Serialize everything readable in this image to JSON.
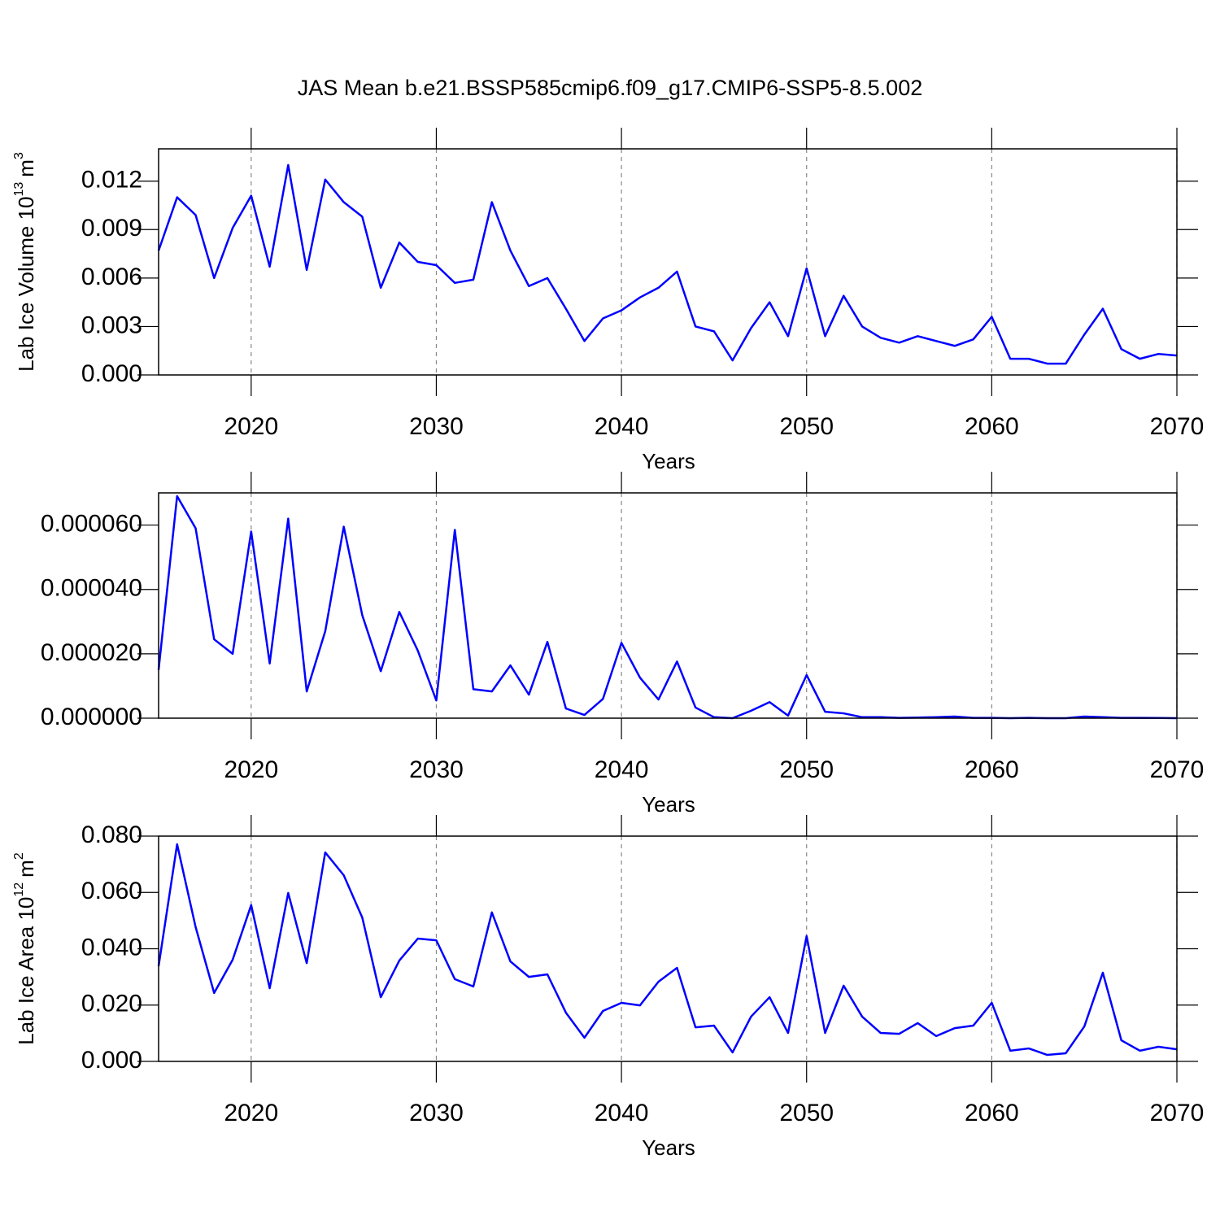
{
  "chart_data": [
    {
      "type": "line",
      "title": "JAS Mean b.e21.BSSP585cmip6.f09_g17.CMIP6-SSP5-8.5.002",
      "xlabel": "Years",
      "ylabel": [
        "Lab Ice Volume 10",
        "13",
        "m",
        "3"
      ],
      "x": [
        2015,
        2016,
        2017,
        2018,
        2019,
        2020,
        2021,
        2022,
        2023,
        2024,
        2025,
        2026,
        2027,
        2028,
        2029,
        2030,
        2031,
        2032,
        2033,
        2034,
        2035,
        2036,
        2037,
        2038,
        2039,
        2040,
        2041,
        2042,
        2043,
        2044,
        2045,
        2046,
        2047,
        2048,
        2049,
        2050,
        2051,
        2052,
        2053,
        2054,
        2055,
        2056,
        2057,
        2058,
        2059,
        2060,
        2061,
        2062,
        2063,
        2064,
        2065,
        2066,
        2067,
        2068,
        2069,
        2070
      ],
      "values": [
        0.0077,
        0.011,
        0.0099,
        0.006,
        0.0091,
        0.0111,
        0.0067,
        0.013,
        0.0065,
        0.0121,
        0.0107,
        0.0098,
        0.0054,
        0.0082,
        0.007,
        0.0068,
        0.0057,
        0.0059,
        0.0107,
        0.0077,
        0.0055,
        0.006,
        0.0041,
        0.0021,
        0.0035,
        0.004,
        0.0048,
        0.0054,
        0.0064,
        0.003,
        0.0027,
        0.0009,
        0.0029,
        0.0045,
        0.0024,
        0.0066,
        0.0024,
        0.0049,
        0.003,
        0.0023,
        0.002,
        0.0024,
        0.0021,
        0.0018,
        0.0022,
        0.0036,
        0.001,
        0.001,
        0.0007,
        0.0007,
        0.0025,
        0.0041,
        0.0016,
        0.001,
        0.0013,
        0.0012
      ],
      "color": "#0000ff",
      "grid": true,
      "xlim": [
        2015,
        2070
      ],
      "xticks": [
        2020,
        2030,
        2040,
        2050,
        2060,
        2070
      ],
      "ylim": [
        0,
        0.014
      ],
      "yticks": [
        {
          "value": 0,
          "label": "0.000"
        },
        {
          "value": 0.003,
          "label": "0.003"
        },
        {
          "value": 0.006,
          "label": "0.006"
        },
        {
          "value": 0.009,
          "label": "0.009"
        },
        {
          "value": 0.012,
          "label": "0.012"
        }
      ]
    },
    {
      "type": "line",
      "xlabel": "Years",
      "x": [
        2015,
        2016,
        2017,
        2018,
        2019,
        2020,
        2021,
        2022,
        2023,
        2024,
        2025,
        2026,
        2027,
        2028,
        2029,
        2030,
        2031,
        2032,
        2033,
        2034,
        2035,
        2036,
        2037,
        2038,
        2039,
        2040,
        2041,
        2042,
        2043,
        2044,
        2045,
        2046,
        2047,
        2048,
        2049,
        2050,
        2051,
        2052,
        2053,
        2054,
        2055,
        2056,
        2057,
        2058,
        2059,
        2060,
        2061,
        2062,
        2063,
        2064,
        2065,
        2066,
        2067,
        2068,
        2069,
        2070
      ],
      "values": [
        1.5e-05,
        6.9e-05,
        5.9e-05,
        2.45e-05,
        2e-05,
        5.8e-05,
        1.7e-05,
        6.2e-05,
        8.3e-06,
        2.7e-05,
        5.95e-05,
        3.2e-05,
        1.46e-05,
        3.3e-05,
        2.1e-05,
        5.5e-06,
        5.85e-05,
        9e-06,
        8.3e-06,
        1.64e-05,
        7.3e-06,
        2.37e-05,
        3e-06,
        1e-06,
        6e-06,
        2.34e-05,
        1.26e-05,
        5.8e-06,
        1.76e-05,
        3.3e-06,
        3e-07,
        0,
        2.3e-06,
        5e-06,
        8e-07,
        1.34e-05,
        2e-06,
        1.5e-06,
        3e-07,
        3e-07,
        1e-07,
        2e-07,
        3e-07,
        5e-07,
        1e-07,
        1e-07,
        0,
        1e-07,
        0,
        0,
        5e-07,
        3e-07,
        1e-07,
        1e-07,
        5e-08,
        0
      ],
      "color": "#0000ff",
      "grid": true,
      "xlim": [
        2015,
        2070
      ],
      "xticks": [
        2020,
        2030,
        2040,
        2050,
        2060,
        2070
      ],
      "ylim": [
        0,
        7e-05
      ],
      "yticks": [
        {
          "value": 0,
          "label": "0.000000"
        },
        {
          "value": 2e-05,
          "label": "0.000020"
        },
        {
          "value": 4e-05,
          "label": "0.000040"
        },
        {
          "value": 6e-05,
          "label": "0.000060"
        }
      ]
    },
    {
      "type": "line",
      "xlabel": "Years",
      "ylabel": [
        "Lab Ice Area 10",
        "12",
        "m",
        "2"
      ],
      "x": [
        2015,
        2016,
        2017,
        2018,
        2019,
        2020,
        2021,
        2022,
        2023,
        2024,
        2025,
        2026,
        2027,
        2028,
        2029,
        2030,
        2031,
        2032,
        2033,
        2034,
        2035,
        2036,
        2037,
        2038,
        2039,
        2040,
        2041,
        2042,
        2043,
        2044,
        2045,
        2046,
        2047,
        2048,
        2049,
        2050,
        2051,
        2052,
        2053,
        2054,
        2055,
        2056,
        2057,
        2058,
        2059,
        2060,
        2061,
        2062,
        2063,
        2064,
        2065,
        2066,
        2067,
        2068,
        2069,
        2070
      ],
      "values": [
        0.0338,
        0.0771,
        0.0477,
        0.0243,
        0.0361,
        0.0555,
        0.026,
        0.0598,
        0.0349,
        0.0742,
        0.0661,
        0.0511,
        0.0228,
        0.0358,
        0.0436,
        0.043,
        0.0292,
        0.0266,
        0.0529,
        0.0355,
        0.03,
        0.0309,
        0.0173,
        0.0084,
        0.0179,
        0.0208,
        0.0199,
        0.0283,
        0.0332,
        0.0121,
        0.0127,
        0.0032,
        0.0159,
        0.0228,
        0.0101,
        0.0445,
        0.0101,
        0.0269,
        0.0159,
        0.0101,
        0.0098,
        0.0136,
        0.009,
        0.0118,
        0.0127,
        0.0208,
        0.0038,
        0.0046,
        0.0023,
        0.0029,
        0.0124,
        0.0315,
        0.0075,
        0.0038,
        0.0052,
        0.0043
      ],
      "color": "#0000ff",
      "grid": true,
      "xlim": [
        2015,
        2070
      ],
      "xticks": [
        2020,
        2030,
        2040,
        2050,
        2060,
        2070
      ],
      "ylim": [
        0,
        0.08
      ],
      "yticks": [
        {
          "value": 0,
          "label": "0.000"
        },
        {
          "value": 0.02,
          "label": "0.020"
        },
        {
          "value": 0.04,
          "label": "0.040"
        },
        {
          "value": 0.06,
          "label": "0.060"
        },
        {
          "value": 0.08,
          "label": "0.080"
        }
      ]
    }
  ]
}
